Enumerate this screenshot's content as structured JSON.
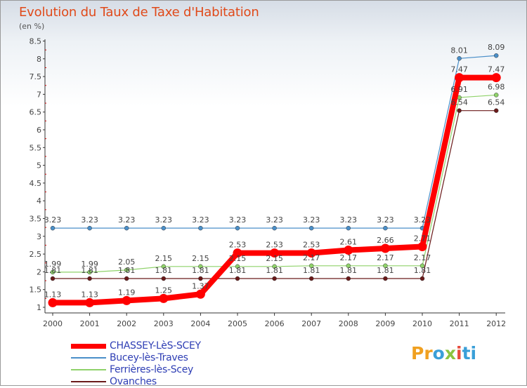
{
  "title": "Evolution du Taux de Taxe d'Habitation",
  "unit": "(en %)",
  "brand": {
    "text": "Proxiti"
  },
  "chart_data": {
    "type": "line",
    "title": "Evolution du Taux de Taxe d'Habitation",
    "ylabel": "(en %)",
    "xlabel": "",
    "x": [
      "2000",
      "2001",
      "2002",
      "2003",
      "2004",
      "2005",
      "2006",
      "2007",
      "2008",
      "2009",
      "2010",
      "2011",
      "2012"
    ],
    "ylim": [
      1,
      8.5
    ],
    "yticks": [
      "1",
      "1.5",
      "2",
      "2.5",
      "3",
      "3.5",
      "4",
      "4.5",
      "5",
      "5.5",
      "6",
      "6.5",
      "7",
      "7.5",
      "8",
      "8.5"
    ],
    "grid": false,
    "legend": "bottom-left",
    "series": [
      {
        "name": "CHASSEY-LèS-SCEY",
        "color": "#ff0000",
        "values": [
          1.13,
          1.13,
          1.19,
          1.25,
          1.37,
          2.53,
          2.53,
          2.53,
          2.61,
          2.66,
          2.71,
          7.47,
          7.47
        ],
        "labels": [
          "1.13",
          "1.13",
          "1.19",
          "1.25",
          "1.37",
          "2.53",
          "2.53",
          "2.53",
          "2.61",
          "2.66",
          "2.71",
          "7.47",
          "7.47"
        ]
      },
      {
        "name": "Bucey-lès-Traves",
        "color": "#4a8fc9",
        "values": [
          3.23,
          3.23,
          3.23,
          3.23,
          3.23,
          3.23,
          3.23,
          3.23,
          3.23,
          3.23,
          3.23,
          8.01,
          8.09
        ],
        "labels": [
          "3.23",
          "3.23",
          "3.23",
          "3.23",
          "3.23",
          "3.23",
          "3.23",
          "3.23",
          "3.23",
          "3.23",
          "3.23",
          "8.01",
          "8.09"
        ]
      },
      {
        "name": "Ferrières-lès-Scey",
        "color": "#8fd26a",
        "values": [
          1.99,
          1.99,
          2.05,
          2.15,
          2.15,
          2.15,
          2.15,
          2.17,
          2.17,
          2.17,
          2.17,
          6.91,
          6.98
        ],
        "labels": [
          "1.99",
          "1.99",
          "2.05",
          "2.15",
          "2.15",
          "2.15",
          "2.15",
          "2.17",
          "2.17",
          "2.17",
          "2.17",
          "6.91",
          "6.98"
        ]
      },
      {
        "name": "Ovanches",
        "color": "#6b1a1a",
        "values": [
          1.81,
          1.81,
          1.81,
          1.81,
          1.81,
          1.81,
          1.81,
          1.81,
          1.81,
          1.81,
          1.81,
          6.54,
          6.54
        ],
        "labels": [
          "1.81",
          "1.81",
          "1.81",
          "1.81",
          "1.81",
          "1.81",
          "1.81",
          "1.81",
          "1.81",
          "1.81",
          "1.81",
          "6.54",
          "6.54"
        ]
      }
    ]
  }
}
